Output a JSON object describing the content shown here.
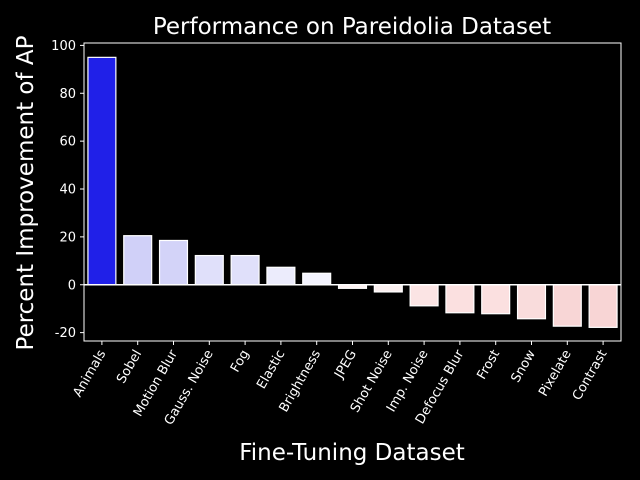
{
  "chart_data": {
    "type": "bar",
    "title": "Performance on Pareidolia Dataset",
    "xlabel": "Fine-Tuning Dataset",
    "ylabel": "Percent Improvement of AP",
    "categories": [
      "Animals",
      "Sobel",
      "Motion Blur",
      "Gauss. Noise",
      "Fog",
      "Elastic",
      "Brightness",
      "JPEG",
      "Shot Noise",
      "Imp. Noise",
      "Defocus Blur",
      "Frost",
      "Snow",
      "Pixelate",
      "Contrast"
    ],
    "values": [
      95,
      20.5,
      18.5,
      12.2,
      12.2,
      7.3,
      4.8,
      -1.5,
      -3.0,
      -8.8,
      -11.7,
      -12.1,
      -14.2,
      -17.3,
      -17.8
    ],
    "colors": [
      "#2020e8",
      "#d0d0f8",
      "#d3d3f8",
      "#e0e0fa",
      "#e0e0fa",
      "#ececfc",
      "#f4f4fe",
      "#fff2f2",
      "#fbf0f0",
      "#fbe4e4",
      "#fbe0e0",
      "#fbe0e0",
      "#f9dcdc",
      "#f8d6d6",
      "#f8d5d5"
    ],
    "yticks": [
      -20,
      0,
      20,
      40,
      60,
      80,
      100
    ],
    "ylim": [
      -23.5,
      101
    ],
    "grid": false,
    "legend": "none"
  }
}
